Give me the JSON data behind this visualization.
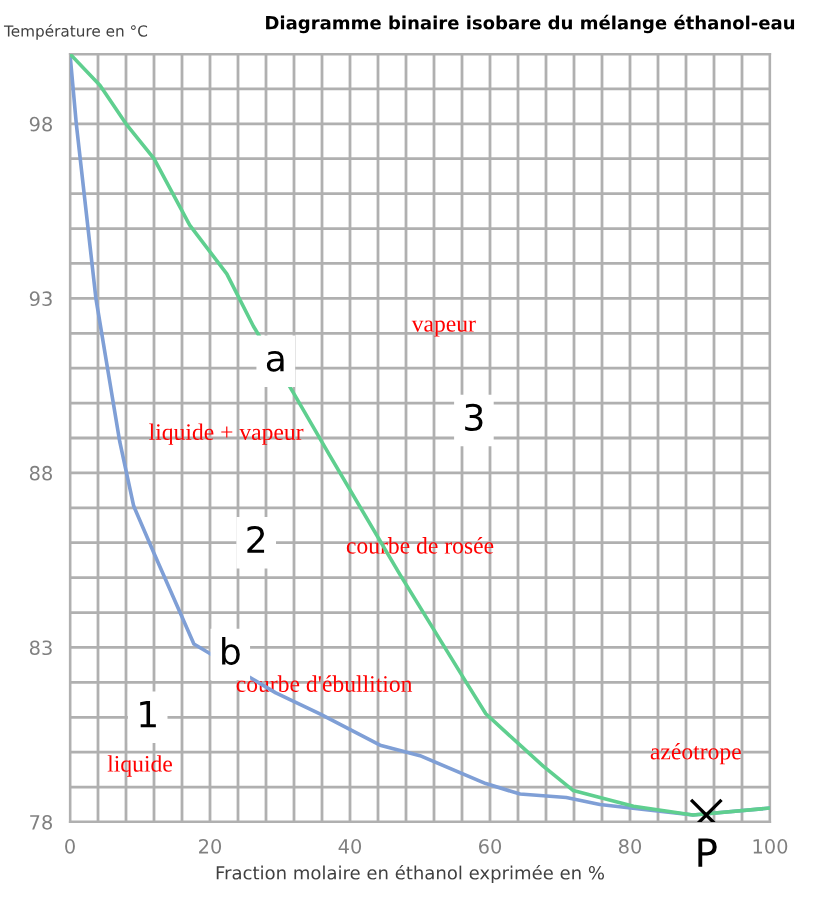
{
  "chart_data": {
    "type": "line",
    "title": "Diagramme binaire isobare du mélange éthanol-eau",
    "xlabel": "Fraction molaire en éthanol exprimée en %",
    "ylabel": "Température en °C",
    "xlim": [
      0,
      100
    ],
    "ylim": [
      78,
      100
    ],
    "xticks": [
      0,
      20,
      40,
      60,
      80,
      100
    ],
    "yticks": [
      78,
      83,
      88,
      93,
      98
    ],
    "grid": true,
    "marker": "none",
    "line_style": "solid",
    "series": [
      {
        "color": "#7f9fd6",
        "x": [
          0,
          0.9,
          3.7,
          7.1,
          9.1,
          12,
          17.7,
          29.4,
          35.7,
          44.3,
          50,
          59.4,
          64.3,
          70.9,
          75.7,
          82.3,
          89,
          100
        ],
        "values": [
          100,
          98,
          93,
          88.9,
          87.05,
          85.7,
          83.1,
          81.7,
          81.1,
          80.2,
          79.9,
          79.1,
          78.8,
          78.7,
          78.5,
          78.35,
          78.2,
          78.4
        ]
      },
      {
        "color": "#5fcf8f",
        "x": [
          0,
          4.3,
          8,
          12,
          17.1,
          22.4,
          26.2,
          31.9,
          37.1,
          47.1,
          56.3,
          59.4,
          64.3,
          67.6,
          71.9,
          75.7,
          80.5,
          89,
          100
        ],
        "values": [
          100,
          99.1,
          98,
          97,
          95.1,
          93.7,
          92.2,
          90.3,
          88.5,
          85.1,
          82.1,
          81.1,
          80.2,
          79.6,
          78.9,
          78.7,
          78.45,
          78.2,
          78.4
        ]
      },
      {
        "type": "scatter",
        "name": "P",
        "color": "#000000",
        "marker": "cross",
        "x": [
          90.9
        ],
        "values": [
          78.2
        ]
      }
    ],
    "annotations": [
      {
        "text": "a",
        "x": 29.4,
        "y": 91.2
      },
      {
        "text": "b",
        "x": 22.9,
        "y": 82.8
      },
      {
        "text": "1",
        "x": 11.1,
        "y": 81
      },
      {
        "text": "2",
        "x": 26.6,
        "y": 86
      },
      {
        "text": "3",
        "x": 57.7,
        "y": 89.5
      },
      "vapeur",
      "liquide + vapeur",
      "courbe de rosée",
      "courbe d'ébullition",
      "liquide",
      "azéotrope"
    ]
  }
}
